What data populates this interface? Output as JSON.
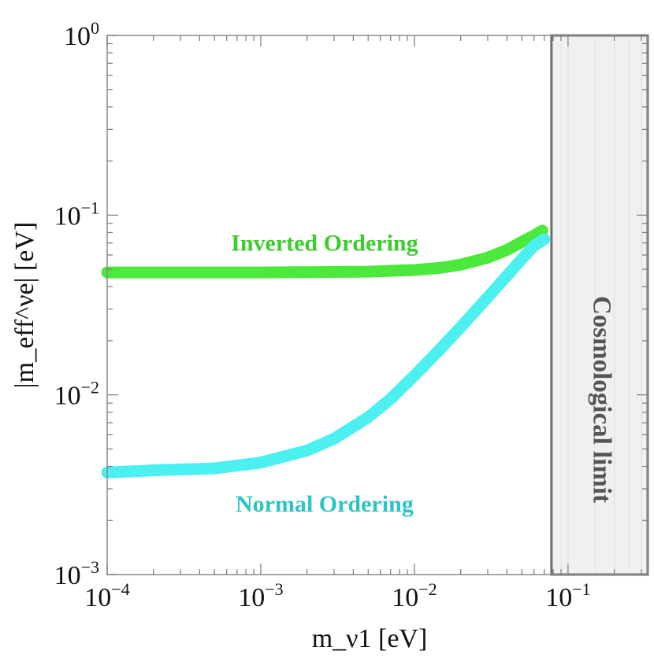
{
  "chart_data": {
    "type": "line",
    "title": "",
    "xlabel": "m_ν1   [eV]",
    "ylabel": "|m_eff^νe|   [eV]",
    "xscale": "log",
    "yscale": "log",
    "xlim": [
      0.0001,
      0.33
    ],
    "ylim": [
      0.001,
      1
    ],
    "x_tick_labels": [
      {
        "value": 0.0001,
        "base": "10",
        "exp": "−4"
      },
      {
        "value": 0.001,
        "base": "10",
        "exp": "−3"
      },
      {
        "value": 0.01,
        "base": "10",
        "exp": "−2"
      },
      {
        "value": 0.1,
        "base": "10",
        "exp": "−1"
      }
    ],
    "y_tick_labels": [
      {
        "value": 1,
        "base": "10",
        "exp": "0"
      },
      {
        "value": 0.1,
        "base": "10",
        "exp": "−1"
      },
      {
        "value": 0.01,
        "base": "10",
        "exp": "−2"
      },
      {
        "value": 0.001,
        "base": "10",
        "exp": "−3"
      }
    ],
    "series": [
      {
        "name": "Inverted Ordering",
        "color": "#4ce83c",
        "label_anchor": {
          "x": 0.0026,
          "y": 0.068
        },
        "x": [
          0.0001,
          0.0002,
          0.0005,
          0.001,
          0.002,
          0.005,
          0.01,
          0.015,
          0.02,
          0.03,
          0.04,
          0.05,
          0.06,
          0.068
        ],
        "y": [
          0.048,
          0.048,
          0.048,
          0.048,
          0.0482,
          0.0485,
          0.0495,
          0.051,
          0.053,
          0.058,
          0.064,
          0.071,
          0.077,
          0.082
        ]
      },
      {
        "name": "Normal Ordering",
        "color": "#4cf0f0",
        "label_anchor": {
          "x": 0.0026,
          "y": 0.0024
        },
        "x": [
          0.0001,
          0.0002,
          0.0005,
          0.001,
          0.002,
          0.003,
          0.005,
          0.007,
          0.01,
          0.015,
          0.02,
          0.03,
          0.04,
          0.05,
          0.06,
          0.07
        ],
        "y": [
          0.0037,
          0.0038,
          0.0039,
          0.0042,
          0.0049,
          0.0057,
          0.0075,
          0.0095,
          0.0128,
          0.0183,
          0.0238,
          0.0349,
          0.046,
          0.057,
          0.0675,
          0.0735
        ]
      }
    ],
    "shaded_region": {
      "label": "Cosmological limit",
      "x_from": 0.078,
      "x_to": 0.33,
      "fill": "#f0f0f0",
      "border": "#707070"
    }
  }
}
